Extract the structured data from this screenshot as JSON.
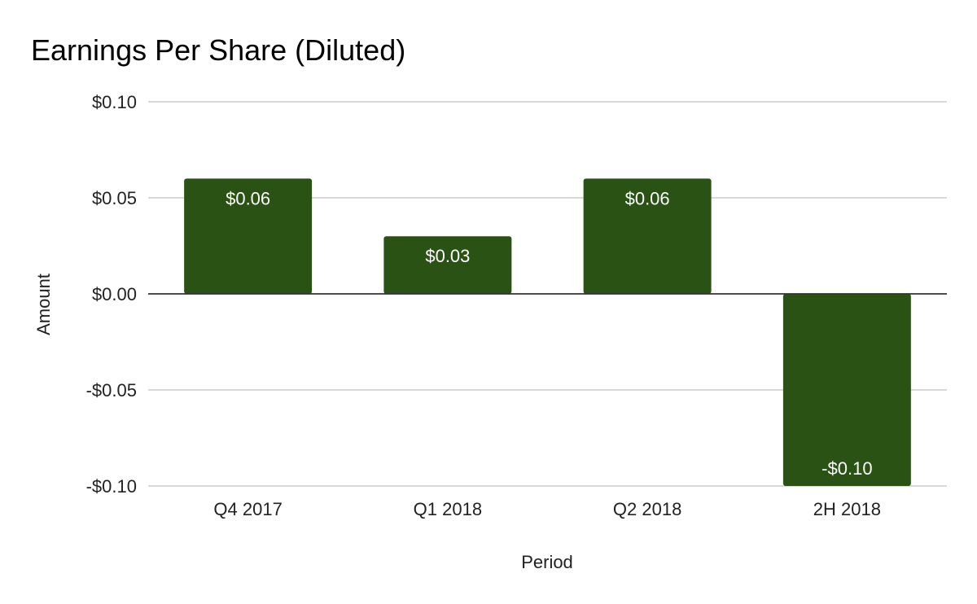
{
  "chart_data": {
    "type": "bar",
    "title": "Earnings Per Share (Diluted)",
    "xlabel": "Period",
    "ylabel": "Amount",
    "categories": [
      "Q4 2017",
      "Q1 2018",
      "Q2 2018",
      "2H 2018"
    ],
    "values": [
      0.06,
      0.03,
      0.06,
      -0.1
    ],
    "data_labels": [
      "$0.06",
      "$0.03",
      "$0.06",
      "-$0.10"
    ],
    "ylim": [
      -0.1,
      0.1
    ],
    "y_ticks": [
      0.1,
      0.05,
      0.0,
      -0.05,
      -0.1
    ],
    "y_tick_labels": [
      "$0.10",
      "$0.05",
      "$0.00",
      "-$0.05",
      "-$0.10"
    ],
    "grid": true,
    "legend": "none",
    "colors": {
      "bar": "#2a5215",
      "gridline": "#cccccc",
      "zero_line": "#333333"
    }
  }
}
